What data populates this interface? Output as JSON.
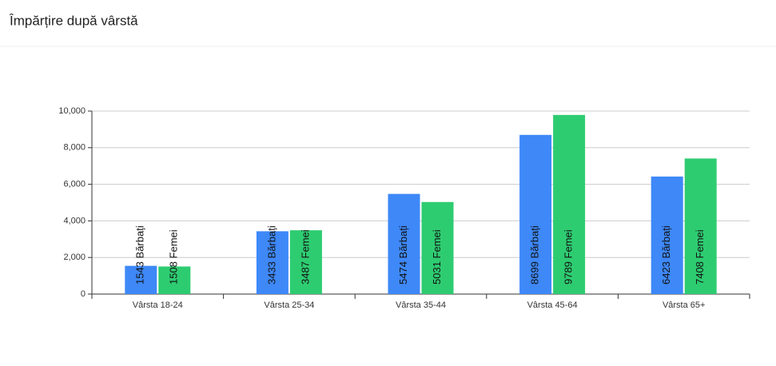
{
  "chart_data": {
    "type": "bar",
    "title": "Împărțire după vârstă",
    "categories": [
      "Vârsta 18-24",
      "Vârsta 25-34",
      "Vârsta 35-44",
      "Vârsta 45-64",
      "Vârsta 65+"
    ],
    "series": [
      {
        "color": "#3e88f8",
        "values": [
          1543,
          3433,
          5474,
          8699,
          6423
        ],
        "value_labels": [
          "1543 Bărbați",
          "3433 Bărbați",
          "5474 Bărbați",
          "8699 Bărbați",
          "6423 Bărbați"
        ]
      },
      {
        "color": "#2ecc71",
        "values": [
          1508,
          3487,
          5031,
          9789,
          7408
        ],
        "value_labels": [
          "1508 Femei",
          "3487 Femei",
          "5031 Femei",
          "9789 Femei",
          "7408 Femei"
        ]
      }
    ],
    "ylim": [
      0,
      10000
    ],
    "yticks": [
      0,
      {
        "value": 2000,
        "label": "2,000"
      },
      {
        "value": 4000,
        "label": "4,000"
      },
      {
        "value": 6000,
        "label": "6,000"
      },
      {
        "value": 8000,
        "label": "8,000"
      },
      {
        "value": 10000,
        "label": "10,000"
      }
    ],
    "grid": true
  }
}
